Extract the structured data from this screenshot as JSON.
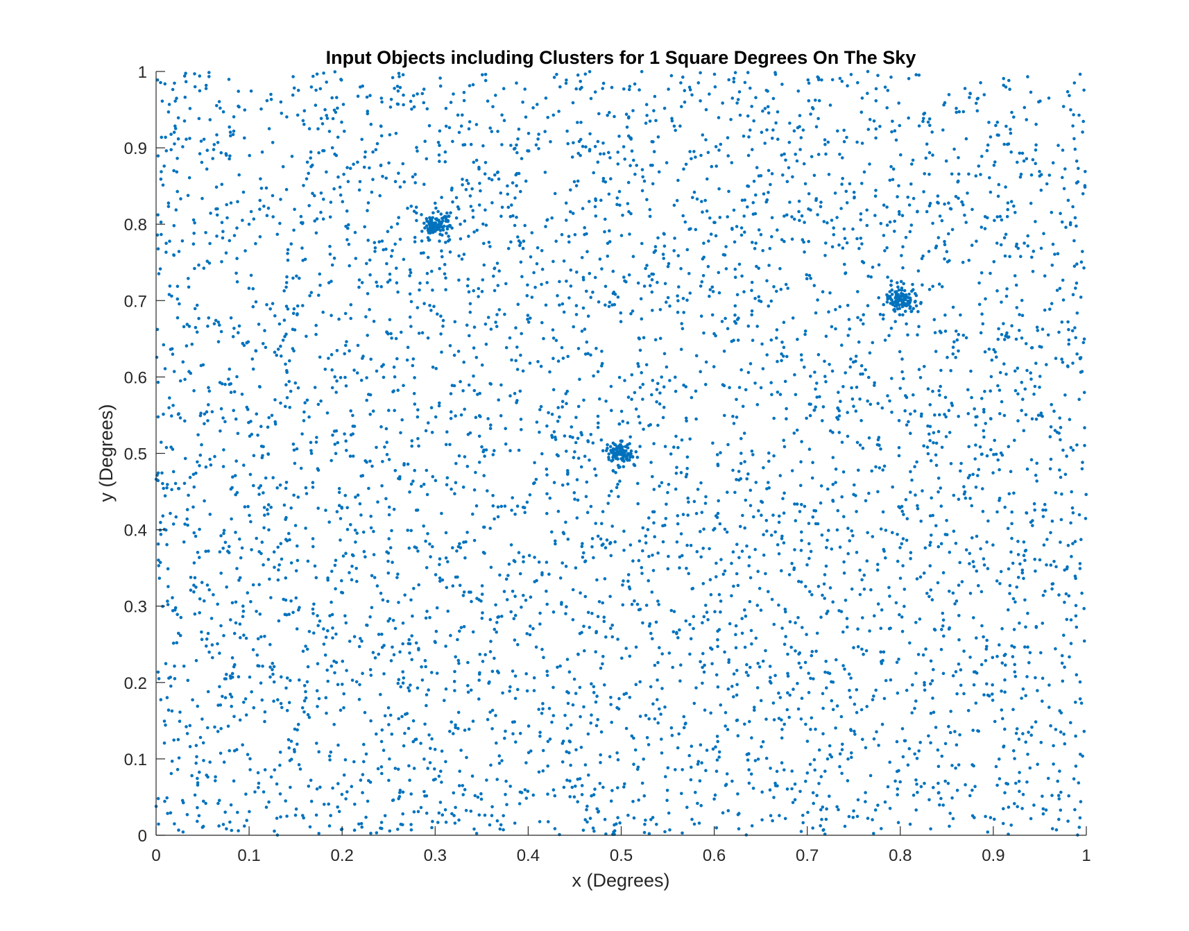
{
  "chart_data": {
    "type": "scatter",
    "title": "Input Objects including Clusters for 1 Square Degrees On The Sky",
    "xlabel": "x (Degrees)",
    "ylabel": "y (Degrees)",
    "xlim": [
      0,
      1
    ],
    "ylim": [
      0,
      1
    ],
    "xticks": [
      "0",
      "0.1",
      "0.2",
      "0.3",
      "0.4",
      "0.5",
      "0.6",
      "0.7",
      "0.8",
      "0.9",
      "1"
    ],
    "yticks": [
      "0",
      "0.1",
      "0.2",
      "0.3",
      "0.4",
      "0.5",
      "0.6",
      "0.7",
      "0.8",
      "0.9",
      "1"
    ],
    "xtick_values": [
      0,
      0.1,
      0.2,
      0.3,
      0.4,
      0.5,
      0.6,
      0.7,
      0.8,
      0.9,
      1
    ],
    "ytick_values": [
      0,
      0.1,
      0.2,
      0.3,
      0.4,
      0.5,
      0.6,
      0.7,
      0.8,
      0.9,
      1
    ],
    "grid": false,
    "marker_color": "#0072BD",
    "axis_color": "#262626",
    "series": [
      {
        "background_count": 5000,
        "distribution": "uniform over [0,1] x [0,1]",
        "clusters": [
          {
            "center": [
              0.3,
              0.8
            ],
            "count": 100,
            "spread": 0.008
          },
          {
            "center": [
              0.5,
              0.5
            ],
            "count": 100,
            "spread": 0.008
          },
          {
            "center": [
              0.8,
              0.7
            ],
            "count": 100,
            "spread": 0.008
          }
        ]
      }
    ]
  }
}
